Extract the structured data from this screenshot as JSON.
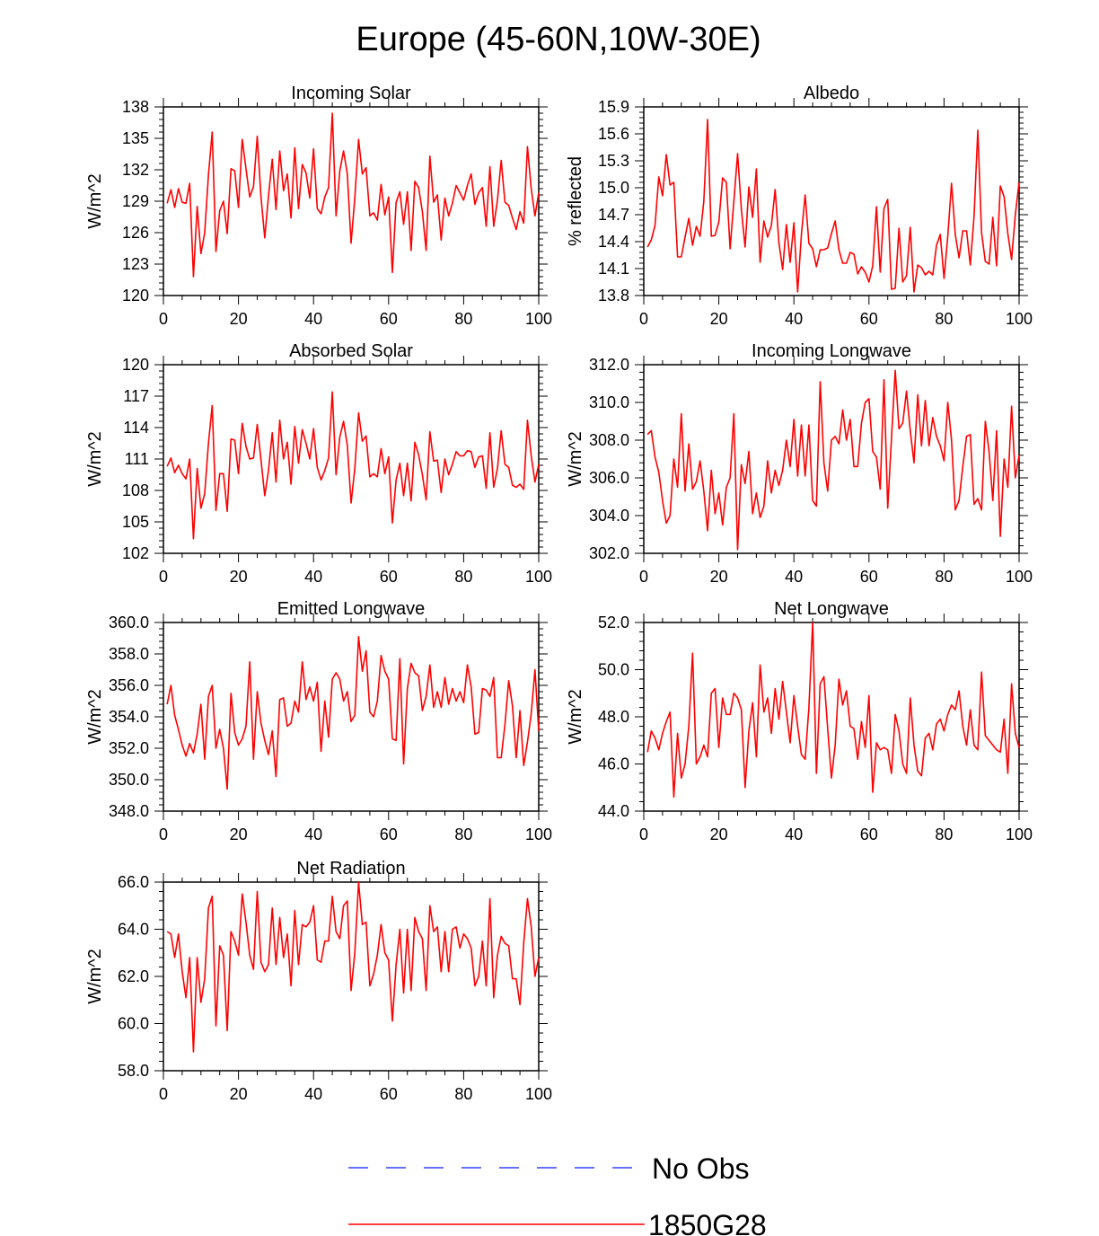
{
  "title": "Europe (45-60N,10W-30E)",
  "legend": {
    "entries": [
      {
        "label": "No Obs",
        "color": "#3344ff",
        "style": "dashed"
      },
      {
        "label": "1850G28",
        "color": "#ff0000",
        "style": "solid"
      }
    ]
  },
  "chart_data": [
    {
      "type": "line",
      "title": "Incoming Solar",
      "ylabel": "W/m^2",
      "xlim": [
        0,
        100
      ],
      "ylim": [
        120,
        138
      ],
      "xticks": [
        0,
        20,
        40,
        60,
        80,
        100
      ],
      "yticks": [
        "120",
        "123",
        "126",
        "129",
        "132",
        "135",
        "138"
      ],
      "series": [
        {
          "name": "1850G28",
          "color": "#ff0000",
          "x_start": 1,
          "values": [
            128.8,
            130.1,
            128.4,
            130.2,
            128.9,
            128.8,
            130.7,
            121.8,
            128.5,
            124.0,
            126.0,
            131.5,
            135.6,
            124.2,
            128.1,
            129.0,
            125.9,
            132.1,
            131.9,
            128.4,
            134.9,
            132.1,
            129.4,
            130.4,
            135.2,
            129.4,
            125.5,
            129.5,
            133.0,
            128.2,
            133.8,
            130.0,
            131.6,
            127.4,
            134.1,
            128.3,
            132.5,
            131.7,
            129.3,
            134.0,
            128.3,
            127.8,
            129.4,
            130.3,
            137.4,
            127.6,
            131.9,
            133.8,
            131.6,
            125.0,
            129.3,
            134.9,
            131.6,
            132.2,
            127.6,
            127.9,
            127.2,
            130.6,
            127.7,
            129.4,
            122.2,
            128.9,
            129.9,
            126.8,
            129.9,
            124.3,
            130.9,
            130.3,
            128.0,
            124.3,
            133.3,
            128.9,
            129.6,
            125.3,
            129.3,
            127.6,
            128.8,
            130.5,
            129.8,
            129.1,
            130.5,
            131.6,
            128.7,
            129.8,
            130.3,
            126.6,
            132.3,
            126.6,
            129.1,
            132.9,
            128.9,
            128.6,
            127.4,
            126.3,
            128.0,
            126.9,
            134.2,
            130.2,
            127.6,
            129.8
          ]
        }
      ]
    },
    {
      "type": "line",
      "title": "Albedo",
      "ylabel": "% reflected",
      "xlim": [
        0,
        100
      ],
      "ylim": [
        13.8,
        15.9
      ],
      "xticks": [
        0,
        20,
        40,
        60,
        80,
        100
      ],
      "yticks": [
        "13.8",
        "14.1",
        "14.4",
        "14.7",
        "15.0",
        "15.3",
        "15.6",
        "15.9"
      ],
      "series": [
        {
          "name": "1850G28",
          "color": "#ff0000",
          "x_start": 1,
          "values": [
            14.34,
            14.42,
            14.58,
            15.12,
            14.91,
            15.37,
            15.03,
            15.06,
            14.23,
            14.23,
            14.45,
            14.66,
            14.36,
            14.57,
            14.46,
            14.85,
            15.76,
            14.46,
            14.47,
            14.62,
            15.11,
            15.06,
            14.32,
            14.85,
            15.38,
            14.76,
            14.34,
            15.01,
            14.67,
            15.21,
            14.17,
            14.63,
            14.45,
            14.58,
            14.98,
            14.39,
            14.09,
            14.59,
            14.17,
            14.61,
            13.84,
            14.48,
            14.92,
            14.38,
            14.32,
            14.12,
            14.31,
            14.31,
            14.33,
            14.49,
            14.63,
            14.31,
            14.16,
            14.16,
            14.28,
            14.26,
            14.04,
            14.12,
            14.06,
            13.95,
            14.13,
            14.79,
            14.06,
            14.77,
            14.87,
            13.87,
            13.88,
            14.55,
            13.95,
            14.02,
            14.56,
            13.84,
            14.14,
            14.11,
            14.03,
            14.07,
            14.03,
            14.36,
            14.48,
            13.99,
            14.46,
            15.05,
            14.48,
            14.22,
            14.52,
            14.52,
            14.14,
            14.68,
            15.64,
            14.5,
            14.18,
            14.15,
            14.67,
            14.13,
            15.02,
            14.9,
            14.49,
            14.2,
            14.7,
            15.06
          ]
        }
      ]
    },
    {
      "type": "line",
      "title": "Absorbed Solar",
      "ylabel": "W/m^2",
      "xlim": [
        0,
        100
      ],
      "ylim": [
        102,
        120
      ],
      "xticks": [
        0,
        20,
        40,
        60,
        80,
        100
      ],
      "yticks": [
        "102",
        "105",
        "108",
        "111",
        "114",
        "117",
        "120"
      ],
      "series": [
        {
          "name": "1850G28",
          "color": "#ff0000",
          "x_start": 1,
          "values": [
            110.3,
            111.1,
            109.7,
            110.4,
            109.6,
            109.1,
            111.0,
            103.4,
            110.1,
            106.3,
            107.7,
            112.5,
            116.1,
            106.1,
            109.6,
            109.6,
            106.0,
            112.9,
            112.8,
            109.6,
            114.4,
            112.2,
            111.0,
            111.1,
            114.3,
            110.9,
            107.5,
            109.9,
            113.5,
            108.8,
            114.7,
            111.0,
            112.6,
            108.6,
            114.1,
            110.6,
            113.8,
            112.5,
            111.0,
            113.9,
            110.2,
            109.0,
            109.9,
            111.1,
            117.4,
            109.5,
            113.1,
            114.6,
            112.3,
            106.8,
            110.1,
            115.4,
            112.7,
            113.2,
            109.3,
            109.6,
            109.3,
            112.0,
            109.6,
            111.2,
            104.9,
            109.0,
            110.6,
            107.5,
            110.6,
            107.0,
            112.6,
            111.4,
            109.5,
            107.1,
            113.6,
            110.8,
            110.9,
            107.8,
            111.0,
            109.5,
            110.5,
            111.7,
            111.3,
            111.3,
            111.8,
            111.7,
            110.2,
            111.2,
            111.3,
            108.2,
            113.5,
            108.3,
            110.1,
            113.7,
            110.5,
            110.2,
            108.5,
            108.3,
            108.6,
            108.1,
            114.7,
            111.3,
            108.8,
            110.5
          ]
        }
      ]
    },
    {
      "type": "line",
      "title": "Incoming Longwave",
      "ylabel": "W/m^2",
      "xlim": [
        0,
        100
      ],
      "ylim": [
        302.0,
        312.0
      ],
      "xticks": [
        0,
        20,
        40,
        60,
        80,
        100
      ],
      "yticks": [
        "302.0",
        "304.0",
        "306.0",
        "308.0",
        "310.0",
        "312.0"
      ],
      "series": [
        {
          "name": "1850G28",
          "color": "#ff0000",
          "x_start": 1,
          "values": [
            308.3,
            308.5,
            307.1,
            306.3,
            304.8,
            303.6,
            304.0,
            307.0,
            305.5,
            309.4,
            305.3,
            307.8,
            305.4,
            305.8,
            306.9,
            305.3,
            303.2,
            306.4,
            304.1,
            305.2,
            303.5,
            305.5,
            306.0,
            309.4,
            302.2,
            306.7,
            305.7,
            307.4,
            304.1,
            305.2,
            303.9,
            304.5,
            306.9,
            305.2,
            306.4,
            305.6,
            306.4,
            308.0,
            306.6,
            309.1,
            306.1,
            308.8,
            306.1,
            308.8,
            304.8,
            304.5,
            311.1,
            306.8,
            305.3,
            308.0,
            308.2,
            307.8,
            309.6,
            308.0,
            309.1,
            306.6,
            306.6,
            308.9,
            310.0,
            310.2,
            307.4,
            307.1,
            305.4,
            311.2,
            304.4,
            308.1,
            311.7,
            308.6,
            308.9,
            310.6,
            308.5,
            306.8,
            310.4,
            307.7,
            310.1,
            307.7,
            309.2,
            308.2,
            307.7,
            306.9,
            310.0,
            308.0,
            304.3,
            304.8,
            306.6,
            308.2,
            308.3,
            304.6,
            304.9,
            304.3,
            309.0,
            307.4,
            304.8,
            308.5,
            302.9,
            307.0,
            305.5,
            309.8,
            306.0,
            307.2
          ]
        }
      ]
    },
    {
      "type": "line",
      "title": "Emitted Longwave",
      "ylabel": "W/m^2",
      "xlim": [
        0,
        100
      ],
      "ylim": [
        348.0,
        360.0
      ],
      "xticks": [
        0,
        20,
        40,
        60,
        80,
        100
      ],
      "yticks": [
        "348.0",
        "350.0",
        "352.0",
        "354.0",
        "356.0",
        "358.0",
        "360.0"
      ],
      "series": [
        {
          "name": "1850G28",
          "color": "#ff0000",
          "x_start": 1,
          "values": [
            354.8,
            356.0,
            354.1,
            353.2,
            352.2,
            351.5,
            352.3,
            351.7,
            352.9,
            354.8,
            351.3,
            355.3,
            356.0,
            352.0,
            353.2,
            352.0,
            349.4,
            355.5,
            353.0,
            352.2,
            352.6,
            353.4,
            357.5,
            351.3,
            355.6,
            353.6,
            352.5,
            351.6,
            353.1,
            350.2,
            355.1,
            355.2,
            353.4,
            353.6,
            355.0,
            354.3,
            357.5,
            355.1,
            355.9,
            355.0,
            356.2,
            351.8,
            355.0,
            352.7,
            356.4,
            356.8,
            356.4,
            355.0,
            355.6,
            353.7,
            354.1,
            359.1,
            356.9,
            358.2,
            354.3,
            354.0,
            355.0,
            357.9,
            356.9,
            356.4,
            352.6,
            352.5,
            357.7,
            351.0,
            355.8,
            357.4,
            356.8,
            356.6,
            354.4,
            355.3,
            357.3,
            354.6,
            355.6,
            354.6,
            356.5,
            354.8,
            355.8,
            355.0,
            355.6,
            354.9,
            357.3,
            355.9,
            352.9,
            353.0,
            355.8,
            355.7,
            355.3,
            356.5,
            351.4,
            351.4,
            353.5,
            356.3,
            354.7,
            351.4,
            354.4,
            350.9,
            352.4,
            354.2,
            357.0,
            353.1
          ]
        }
      ]
    },
    {
      "type": "line",
      "title": "Net Longwave",
      "ylabel": "W/m^2",
      "xlim": [
        0,
        100
      ],
      "ylim": [
        44.0,
        52.0
      ],
      "xticks": [
        0,
        20,
        40,
        60,
        80,
        100
      ],
      "yticks": [
        "44.0",
        "46.0",
        "48.0",
        "50.0",
        "52.0"
      ],
      "series": [
        {
          "name": "1850G28",
          "color": "#ff0000",
          "x_start": 1,
          "values": [
            46.5,
            47.4,
            47.1,
            46.6,
            47.3,
            47.8,
            48.2,
            44.6,
            47.3,
            45.4,
            46.0,
            47.6,
            50.7,
            46.0,
            46.3,
            46.8,
            46.3,
            49.0,
            49.2,
            46.7,
            48.8,
            48.1,
            48.1,
            49.0,
            48.8,
            48.3,
            45.0,
            47.4,
            48.6,
            46.3,
            50.2,
            48.2,
            48.8,
            47.3,
            49.2,
            47.9,
            49.5,
            48.2,
            46.9,
            48.9,
            47.6,
            46.4,
            46.2,
            48.4,
            52.0,
            45.6,
            49.4,
            49.7,
            47.5,
            45.4,
            46.8,
            49.6,
            48.5,
            49.1,
            47.6,
            47.5,
            46.2,
            47.8,
            46.7,
            48.9,
            44.8,
            46.9,
            46.6,
            46.7,
            46.6,
            45.6,
            48.1,
            47.4,
            46.0,
            45.6,
            48.8,
            46.8,
            45.7,
            45.5,
            47.1,
            47.3,
            46.6,
            47.7,
            47.9,
            47.4,
            48.1,
            48.5,
            48.3,
            49.1,
            47.6,
            46.8,
            48.3,
            46.8,
            46.6,
            49.9,
            47.2,
            47.0,
            46.8,
            46.6,
            46.5,
            47.9,
            45.6,
            49.4,
            47.3,
            46.7
          ]
        }
      ]
    },
    {
      "type": "line",
      "title": "Net Radiation",
      "ylabel": "W/m^2",
      "xlim": [
        0,
        100
      ],
      "ylim": [
        58.0,
        66.0
      ],
      "xticks": [
        0,
        20,
        40,
        60,
        80,
        100
      ],
      "yticks": [
        "58.0",
        "60.0",
        "62.0",
        "64.0",
        "66.0"
      ],
      "series": [
        {
          "name": "1850G28",
          "color": "#ff0000",
          "x_start": 1,
          "values": [
            63.9,
            63.8,
            62.8,
            63.8,
            62.2,
            61.1,
            62.8,
            58.8,
            62.8,
            60.9,
            61.9,
            64.9,
            65.4,
            59.9,
            63.3,
            62.9,
            59.7,
            63.9,
            63.5,
            62.9,
            65.5,
            64.3,
            62.9,
            62.3,
            65.6,
            62.6,
            62.2,
            62.5,
            64.9,
            62.5,
            64.5,
            62.8,
            63.8,
            61.6,
            64.8,
            62.5,
            64.2,
            64.1,
            64.3,
            65.0,
            62.7,
            62.6,
            63.5,
            63.5,
            65.4,
            63.9,
            63.6,
            65.0,
            65.2,
            61.4,
            63.0,
            66.0,
            64.2,
            64.3,
            61.6,
            62.1,
            62.9,
            64.2,
            63.0,
            62.7,
            60.1,
            62.5,
            64.0,
            61.3,
            64.0,
            61.4,
            64.5,
            63.9,
            63.6,
            61.4,
            65.0,
            63.9,
            64.1,
            62.2,
            63.9,
            62.2,
            64.0,
            64.1,
            63.2,
            63.8,
            63.6,
            63.2,
            61.6,
            62.0,
            63.5,
            61.6,
            65.3,
            61.1,
            62.9,
            63.7,
            63.4,
            63.3,
            61.9,
            61.9,
            60.8,
            63.4,
            65.3,
            64.1,
            62.0,
            62.8
          ]
        }
      ]
    }
  ]
}
